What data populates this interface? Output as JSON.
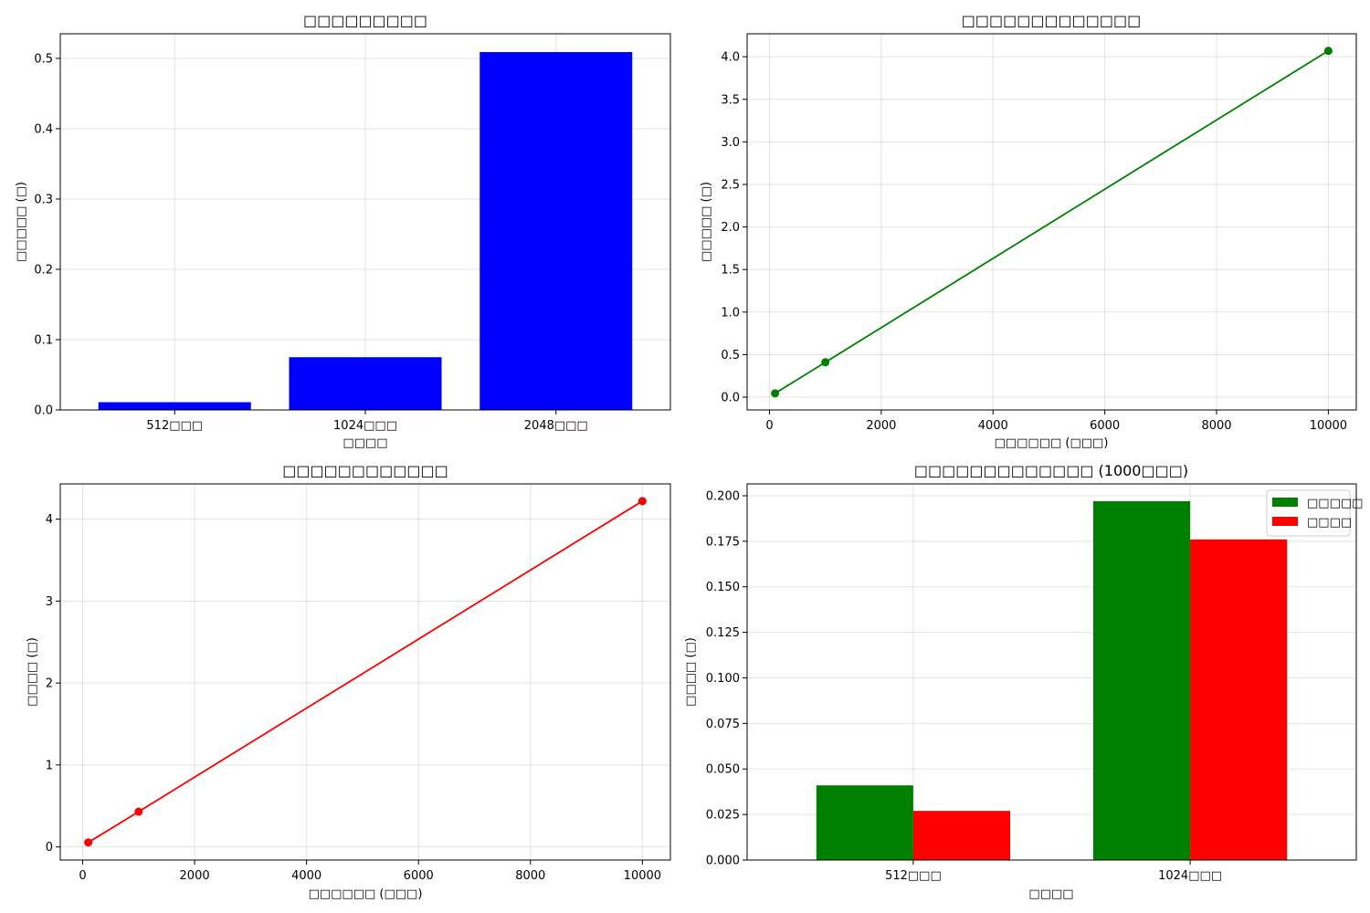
{
  "chart_data": [
    {
      "type": "bar",
      "title": "□□□□□□□□□",
      "xlabel": "□□□□",
      "ylabel": "□□□□□ (□)",
      "categories": [
        "512□□□",
        "1024□□□",
        "2048□□□"
      ],
      "values": [
        0.011,
        0.075,
        0.509
      ],
      "ylim": [
        0,
        0.535
      ],
      "yticks": [
        0.0,
        0.1,
        0.2,
        0.3,
        0.4,
        0.5
      ],
      "ytick_labels": [
        "0.0",
        "0.1",
        "0.2",
        "0.3",
        "0.4",
        "0.5"
      ],
      "color": "#0000ff",
      "grid": true
    },
    {
      "type": "line",
      "title": "□□□□□□□□□□□□□",
      "xlabel": "□□□□□□ (□□□)",
      "ylabel": "□□□□□ (□)",
      "x": [
        100,
        1000,
        10000
      ],
      "y": [
        0.045,
        0.41,
        4.07
      ],
      "xlim": [
        -400,
        10500
      ],
      "ylim": [
        -0.15,
        4.27
      ],
      "xticks": [
        0,
        2000,
        4000,
        6000,
        8000,
        10000
      ],
      "xtick_labels": [
        "0",
        "2000",
        "4000",
        "6000",
        "8000",
        "10000"
      ],
      "yticks": [
        0.0,
        0.5,
        1.0,
        1.5,
        2.0,
        2.5,
        3.0,
        3.5,
        4.0
      ],
      "ytick_labels": [
        "0.0",
        "0.5",
        "1.0",
        "1.5",
        "2.0",
        "2.5",
        "3.0",
        "3.5",
        "4.0"
      ],
      "color": "#008000",
      "marker": "circle",
      "grid": true
    },
    {
      "type": "line",
      "title": "□□□□□□□□□□□□",
      "xlabel": "□□□□□□ (□□□)",
      "ylabel": "□□□□ (□)",
      "x": [
        100,
        1000,
        10000
      ],
      "y": [
        0.055,
        0.43,
        4.22
      ],
      "xlim": [
        -400,
        10500
      ],
      "ylim": [
        -0.16,
        4.43
      ],
      "xticks": [
        0,
        2000,
        4000,
        6000,
        8000,
        10000
      ],
      "xtick_labels": [
        "0",
        "2000",
        "4000",
        "6000",
        "8000",
        "10000"
      ],
      "yticks": [
        0,
        1,
        2,
        3,
        4
      ],
      "ytick_labels": [
        "0",
        "1",
        "2",
        "3",
        "4"
      ],
      "color": "#ff0000",
      "marker": "circle",
      "grid": true
    },
    {
      "type": "bar",
      "title": "□□□□□□□□□□□□□ (1000□□□)",
      "xlabel": "□□□□",
      "ylabel": "□□□□ (□)",
      "categories": [
        "512□□□",
        "1024□□□"
      ],
      "series": [
        {
          "name": "□□□□□",
          "values": [
            0.041,
            0.197
          ],
          "color": "#008000"
        },
        {
          "name": "□□□□",
          "values": [
            0.027,
            0.176
          ],
          "color": "#ff0000"
        }
      ],
      "ylim": [
        0,
        0.2065
      ],
      "yticks": [
        0.0,
        0.025,
        0.05,
        0.075,
        0.1,
        0.125,
        0.15,
        0.175,
        0.2
      ],
      "ytick_labels": [
        "0.000",
        "0.025",
        "0.050",
        "0.075",
        "0.100",
        "0.125",
        "0.150",
        "0.175",
        "0.200"
      ],
      "legend": "top-right",
      "grid": true
    }
  ]
}
